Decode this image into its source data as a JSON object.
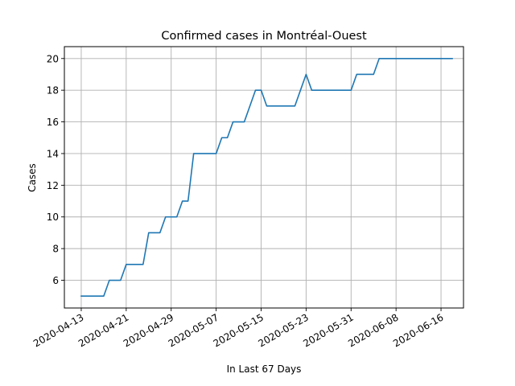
{
  "chart_data": {
    "type": "line",
    "title": "Confirmed cases in Montréal-Ouest",
    "xlabel": "In Last 67 Days",
    "ylabel": "Cases",
    "x_start": "2020-04-13",
    "x_end": "2020-06-18",
    "xlim": [
      "2020-04-10",
      "2020-06-20"
    ],
    "ylim": [
      4.25,
      20.75
    ],
    "x_ticks": [
      "2020-04-13",
      "2020-04-21",
      "2020-04-29",
      "2020-05-07",
      "2020-05-15",
      "2020-05-23",
      "2020-05-31",
      "2020-06-08",
      "2020-06-16"
    ],
    "y_ticks": [
      6,
      8,
      10,
      12,
      14,
      16,
      18,
      20
    ],
    "grid": true,
    "series": [
      {
        "color": "#1f77b4",
        "points": [
          [
            "2020-04-13",
            5
          ],
          [
            "2020-04-14",
            5
          ],
          [
            "2020-04-15",
            5
          ],
          [
            "2020-04-16",
            5
          ],
          [
            "2020-04-17",
            5
          ],
          [
            "2020-04-18",
            6
          ],
          [
            "2020-04-19",
            6
          ],
          [
            "2020-04-20",
            6
          ],
          [
            "2020-04-21",
            7
          ],
          [
            "2020-04-22",
            7
          ],
          [
            "2020-04-23",
            7
          ],
          [
            "2020-04-24",
            7
          ],
          [
            "2020-04-25",
            9
          ],
          [
            "2020-04-26",
            9
          ],
          [
            "2020-04-27",
            9
          ],
          [
            "2020-04-28",
            10
          ],
          [
            "2020-04-29",
            10
          ],
          [
            "2020-04-30",
            10
          ],
          [
            "2020-05-01",
            11
          ],
          [
            "2020-05-02",
            11
          ],
          [
            "2020-05-03",
            14
          ],
          [
            "2020-05-04",
            14
          ],
          [
            "2020-05-05",
            14
          ],
          [
            "2020-05-06",
            14
          ],
          [
            "2020-05-07",
            14
          ],
          [
            "2020-05-08",
            15
          ],
          [
            "2020-05-09",
            15
          ],
          [
            "2020-05-10",
            16
          ],
          [
            "2020-05-11",
            16
          ],
          [
            "2020-05-12",
            16
          ],
          [
            "2020-05-13",
            17
          ],
          [
            "2020-05-14",
            18
          ],
          [
            "2020-05-15",
            18
          ],
          [
            "2020-05-16",
            17
          ],
          [
            "2020-05-17",
            17
          ],
          [
            "2020-05-18",
            17
          ],
          [
            "2020-05-19",
            17
          ],
          [
            "2020-05-20",
            17
          ],
          [
            "2020-05-21",
            17
          ],
          [
            "2020-05-22",
            18
          ],
          [
            "2020-05-23",
            19
          ],
          [
            "2020-05-24",
            18
          ],
          [
            "2020-05-25",
            18
          ],
          [
            "2020-05-26",
            18
          ],
          [
            "2020-05-27",
            18
          ],
          [
            "2020-05-28",
            18
          ],
          [
            "2020-05-29",
            18
          ],
          [
            "2020-05-30",
            18
          ],
          [
            "2020-05-31",
            18
          ],
          [
            "2020-06-01",
            19
          ],
          [
            "2020-06-02",
            19
          ],
          [
            "2020-06-03",
            19
          ],
          [
            "2020-06-04",
            19
          ],
          [
            "2020-06-05",
            20
          ],
          [
            "2020-06-06",
            20
          ],
          [
            "2020-06-07",
            20
          ],
          [
            "2020-06-08",
            20
          ],
          [
            "2020-06-09",
            20
          ],
          [
            "2020-06-10",
            20
          ],
          [
            "2020-06-11",
            20
          ],
          [
            "2020-06-12",
            20
          ],
          [
            "2020-06-13",
            20
          ],
          [
            "2020-06-14",
            20
          ],
          [
            "2020-06-15",
            20
          ],
          [
            "2020-06-16",
            20
          ],
          [
            "2020-06-17",
            20
          ],
          [
            "2020-06-18",
            20
          ]
        ]
      }
    ]
  }
}
